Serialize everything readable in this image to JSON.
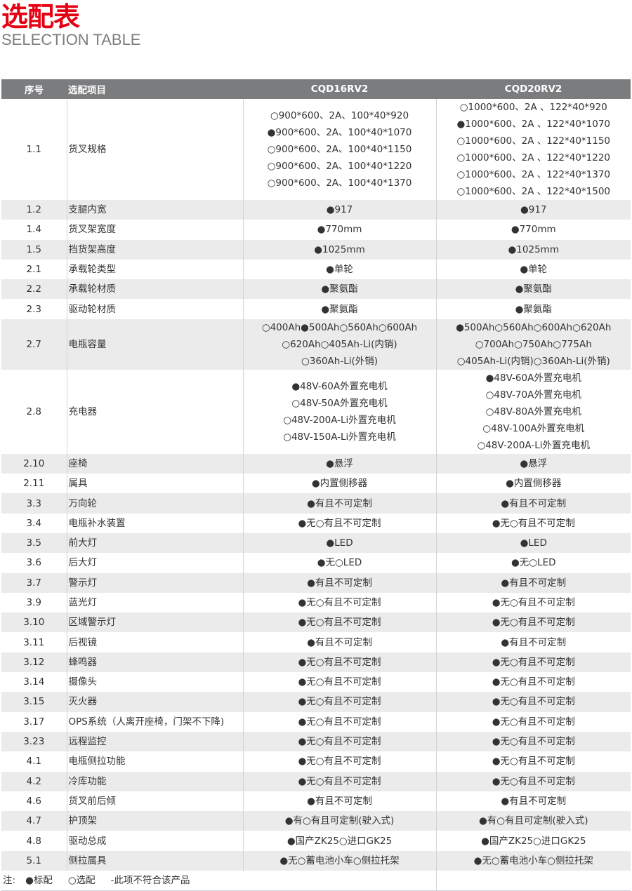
{
  "header": {
    "title": "选配表",
    "subtitle": "SELECTION TABLE"
  },
  "table": {
    "columns": [
      "序号",
      "选配项目",
      "CQD16RV2",
      "CQD20RV2"
    ],
    "rows": [
      {
        "no": "1.1",
        "item": "货叉规格",
        "a": [
          "○900*600、2A、100*40*920",
          "●900*600、2A、100*40*1070",
          "○900*600、2A、100*40*1150",
          "○900*600、2A、100*40*1220",
          "○900*600、2A、100*40*1370"
        ],
        "b": [
          "○1000*600、2A 、122*40*920",
          "●1000*600、2A 、122*40*1070",
          "○1000*600、2A 、122*40*1150",
          "○1000*600、2A 、122*40*1220",
          "○1000*600、2A 、122*40*1370",
          "○1000*600、2A 、122*40*1500"
        ]
      },
      {
        "no": "1.2",
        "item": "支腿内宽",
        "a": [
          "●917"
        ],
        "b": [
          "●917"
        ]
      },
      {
        "no": "1.4",
        "item": "货叉架宽度",
        "a": [
          "●770mm"
        ],
        "b": [
          "●770mm"
        ]
      },
      {
        "no": "1.5",
        "item": "挡货架高度",
        "a": [
          "●1025mm"
        ],
        "b": [
          "●1025mm"
        ]
      },
      {
        "no": "2.1",
        "item": "承载轮类型",
        "a": [
          "●单轮"
        ],
        "b": [
          "●单轮"
        ]
      },
      {
        "no": "2.2",
        "item": "承载轮材质",
        "a": [
          "●聚氨酯"
        ],
        "b": [
          "●聚氨酯"
        ]
      },
      {
        "no": "2.3",
        "item": "驱动轮材质",
        "a": [
          "●聚氨酯"
        ],
        "b": [
          "●聚氨酯"
        ]
      },
      {
        "no": "2.7",
        "item": "电瓶容量",
        "a": [
          "○400Ah●500Ah○560Ah○600Ah",
          "○620Ah○405Ah-Li(内销)",
          "○360Ah-Li(外销)"
        ],
        "b": [
          "●500Ah○560Ah○600Ah○620Ah",
          "○700Ah○750Ah○775Ah",
          "○405Ah-Li(内销)○360Ah-Li(外销)"
        ]
      },
      {
        "no": "2.8",
        "item": "充电器",
        "a": [
          "●48V-60A外置充电机",
          "○48V-50A外置充电机",
          "○48V-200A-Li外置充电机",
          "○48V-150A-Li外置充电机"
        ],
        "b": [
          "●48V-60A外置充电机",
          "○48V-70A外置充电机",
          "○48V-80A外置充电机",
          "○48V-100A外置充电机",
          "○48V-200A-Li外置充电机"
        ]
      },
      {
        "no": "2.10",
        "item": "座椅",
        "a": [
          "●悬浮"
        ],
        "b": [
          "●悬浮"
        ]
      },
      {
        "no": "2.11",
        "item": "属具",
        "a": [
          "●内置侧移器"
        ],
        "b": [
          "●内置侧移器"
        ]
      },
      {
        "no": "3.3",
        "item": "万向轮",
        "a": [
          "●有且不可定制"
        ],
        "b": [
          "●有且不可定制"
        ]
      },
      {
        "no": "3.4",
        "item": "电瓶补水装置",
        "a": [
          "●无○有且不可定制"
        ],
        "b": [
          "●无○有且不可定制"
        ]
      },
      {
        "no": "3.5",
        "item": "前大灯",
        "a": [
          "●LED"
        ],
        "b": [
          "●LED"
        ]
      },
      {
        "no": "3.6",
        "item": "后大灯",
        "a": [
          "●无○LED"
        ],
        "b": [
          "●无○LED"
        ]
      },
      {
        "no": "3.7",
        "item": "警示灯",
        "a": [
          "●有且不可定制"
        ],
        "b": [
          "●有且不可定制"
        ]
      },
      {
        "no": "3.9",
        "item": "蓝光灯",
        "a": [
          "●无○有且不可定制"
        ],
        "b": [
          "●无○有且不可定制"
        ]
      },
      {
        "no": "3.10",
        "item": "区域警示灯",
        "a": [
          "●无○有且不可定制"
        ],
        "b": [
          "●无○有且不可定制"
        ]
      },
      {
        "no": "3.11",
        "item": "后视镜",
        "a": [
          "●有且不可定制"
        ],
        "b": [
          "●有且不可定制"
        ]
      },
      {
        "no": "3.12",
        "item": "蜂鸣器",
        "a": [
          "●无○有且不可定制"
        ],
        "b": [
          "●无○有且不可定制"
        ]
      },
      {
        "no": "3.14",
        "item": "摄像头",
        "a": [
          "●无○有且不可定制"
        ],
        "b": [
          "●无○有且不可定制"
        ]
      },
      {
        "no": "3.15",
        "item": "灭火器",
        "a": [
          "●无○有且不可定制"
        ],
        "b": [
          "●无○有且不可定制"
        ]
      },
      {
        "no": "3.17",
        "item": "OPS系统（人离开座椅，门架不下降)",
        "a": [
          "●无○有且不可定制"
        ],
        "b": [
          "●无○有且不可定制"
        ]
      },
      {
        "no": "3.23",
        "item": "远程监控",
        "a": [
          "●无○有且不可定制"
        ],
        "b": [
          "●无○有且不可定制"
        ]
      },
      {
        "no": "4.1",
        "item": "电瓶侧拉功能",
        "a": [
          "●无○有且不可定制"
        ],
        "b": [
          "●无○有且不可定制"
        ]
      },
      {
        "no": "4.2",
        "item": "冷库功能",
        "a": [
          "●无○有且不可定制"
        ],
        "b": [
          "●无○有且不可定制"
        ]
      },
      {
        "no": "4.6",
        "item": "货叉前后倾",
        "a": [
          "●有且不可定制"
        ],
        "b": [
          "●有且不可定制"
        ]
      },
      {
        "no": "4.7",
        "item": "护顶架",
        "a": [
          "●有○有且可定制(驶入式)"
        ],
        "b": [
          "●有○有且可定制(驶入式)"
        ]
      },
      {
        "no": "4.8",
        "item": "驱动总成",
        "a": [
          "●国产ZK25○进口GK25"
        ],
        "b": [
          "●国产ZK25○进口GK25"
        ]
      },
      {
        "no": "5.1",
        "item": "侧拉属具",
        "a": [
          "●无○蓄电池小车○侧拉托架"
        ],
        "b": [
          "●无○蓄电池小车○侧拉托架"
        ]
      }
    ],
    "note": {
      "label": "注:",
      "standard": "●标配",
      "optional": "○选配",
      "na": "-此项不符合该产品"
    }
  }
}
